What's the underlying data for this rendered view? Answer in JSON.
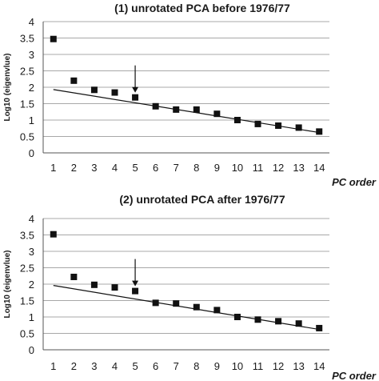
{
  "chart_data": [
    {
      "type": "scatter",
      "title": "(1) unrotated PCA before 1976/77",
      "xlabel": "PC order",
      "ylabel": "Log10 (eigenvlue)",
      "x": [
        1,
        2,
        3,
        4,
        5,
        6,
        7,
        8,
        9,
        10,
        11,
        12,
        13,
        14
      ],
      "values": [
        3.47,
        2.2,
        1.92,
        1.84,
        1.69,
        1.42,
        1.32,
        1.32,
        1.19,
        1.0,
        0.88,
        0.83,
        0.77,
        0.65
      ],
      "trend_line": {
        "x": [
          1,
          14
        ],
        "y": [
          1.93,
          0.62
        ]
      },
      "arrow_at_x": 5,
      "xticks": [
        "1",
        "2",
        "3",
        "4",
        "5",
        "6",
        "7",
        "8",
        "9",
        "10",
        "11",
        "12",
        "13",
        "14"
      ],
      "yticks": [
        "0",
        "0.5",
        "1",
        "1.5",
        "2",
        "2.5",
        "3",
        "3.5",
        "4"
      ],
      "ylim": [
        0,
        4
      ],
      "grid": true,
      "marker_color": "#111111"
    },
    {
      "type": "scatter",
      "title": "(2) unrotated PCA after 1976/77",
      "xlabel": "PC order",
      "ylabel": "Log10 (eigenvlue)",
      "x": [
        1,
        2,
        3,
        4,
        5,
        6,
        7,
        8,
        9,
        10,
        11,
        12,
        13,
        14
      ],
      "values": [
        3.52,
        2.22,
        1.98,
        1.9,
        1.79,
        1.43,
        1.41,
        1.3,
        1.21,
        1.0,
        0.92,
        0.87,
        0.8,
        0.66
      ],
      "trend_line": {
        "x": [
          1,
          14
        ],
        "y": [
          1.96,
          0.62
        ]
      },
      "arrow_at_x": 5,
      "xticks": [
        "1",
        "2",
        "3",
        "4",
        "5",
        "6",
        "7",
        "8",
        "9",
        "10",
        "11",
        "12",
        "13",
        "14"
      ],
      "yticks": [
        "0",
        "0.5",
        "1",
        "1.5",
        "2",
        "2.5",
        "3",
        "3.5",
        "4"
      ],
      "ylim": [
        0,
        4
      ],
      "grid": true,
      "marker_color": "#111111"
    }
  ]
}
